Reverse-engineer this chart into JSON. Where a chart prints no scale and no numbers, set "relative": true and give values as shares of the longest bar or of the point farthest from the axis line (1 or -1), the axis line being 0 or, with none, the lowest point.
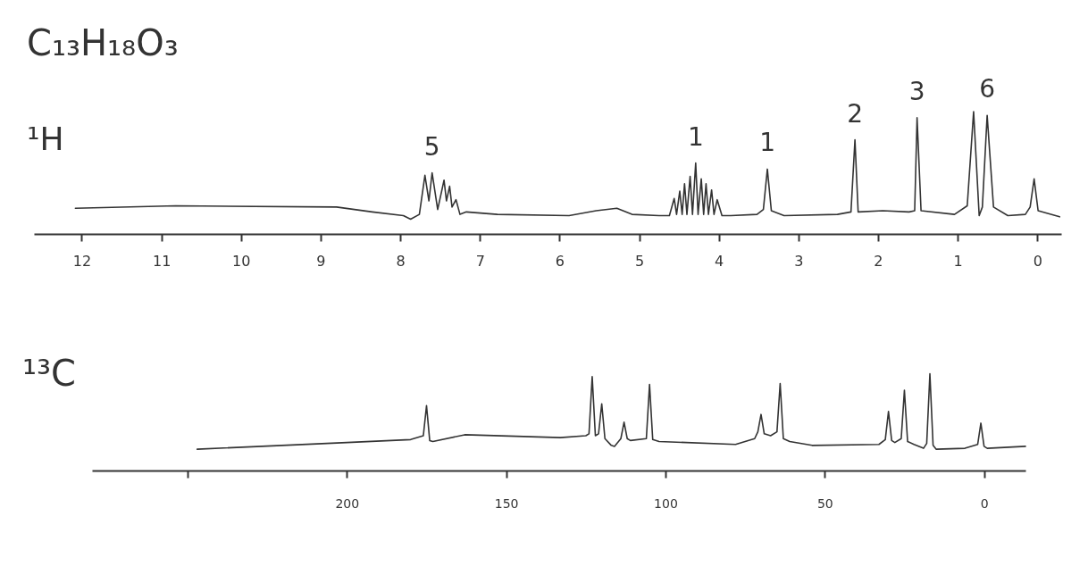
{
  "chart_data": [
    {
      "type": "line",
      "title": "C₁₃H₁₈O₃",
      "subtitle": "¹H",
      "relative": true,
      "color": "#333333",
      "x": [
        12.08,
        10.82,
        8.8,
        8.35,
        7.96,
        7.87,
        7.76,
        7.69,
        7.64,
        7.6,
        7.53,
        7.45,
        7.42,
        7.38,
        7.35,
        7.3,
        7.25,
        7.17,
        6.78,
        5.88,
        5.54,
        5.28,
        5.09,
        4.75,
        4.62,
        4.56,
        4.53,
        4.49,
        4.46,
        4.43,
        4.4,
        4.36,
        4.33,
        4.29,
        4.26,
        4.22,
        4.19,
        4.16,
        4.13,
        4.09,
        4.06,
        4.02,
        3.96,
        3.85,
        3.52,
        3.44,
        3.39,
        3.34,
        3.18,
        2.51,
        2.34,
        2.29,
        2.25,
        1.94,
        1.61,
        1.54,
        1.51,
        1.46,
        1.04,
        0.88,
        0.8,
        0.73,
        0.69,
        0.63,
        0.55,
        0.37,
        0.15,
        0.09,
        0.04,
        -0.01,
        -0.28
      ],
      "values": [
        0.21,
        0.23,
        0.22,
        0.18,
        0.15,
        0.12,
        0.16,
        0.48,
        0.27,
        0.5,
        0.2,
        0.44,
        0.27,
        0.39,
        0.22,
        0.28,
        0.16,
        0.18,
        0.16,
        0.15,
        0.19,
        0.21,
        0.16,
        0.15,
        0.15,
        0.29,
        0.16,
        0.35,
        0.16,
        0.41,
        0.16,
        0.47,
        0.16,
        0.58,
        0.16,
        0.45,
        0.16,
        0.41,
        0.16,
        0.36,
        0.16,
        0.28,
        0.15,
        0.15,
        0.16,
        0.2,
        0.53,
        0.19,
        0.15,
        0.16,
        0.18,
        0.77,
        0.18,
        0.19,
        0.18,
        0.19,
        0.95,
        0.19,
        0.16,
        0.23,
        1.0,
        0.15,
        0.22,
        0.97,
        0.22,
        0.15,
        0.16,
        0.22,
        0.45,
        0.19,
        0.14
      ],
      "xlim": [
        12.6,
        -0.3
      ],
      "xticks": [
        12,
        11,
        10,
        9,
        8,
        7,
        6,
        5,
        4,
        3,
        2,
        1,
        0
      ],
      "annotations": [
        {
          "text": "5",
          "x": 7.6,
          "y": 0.5
        },
        {
          "text": "1",
          "x": 4.29,
          "y": 0.58
        },
        {
          "text": "1",
          "x": 3.39,
          "y": 0.53
        },
        {
          "text": "2",
          "x": 2.29,
          "y": 0.77
        },
        {
          "text": "3",
          "x": 1.51,
          "y": 0.95
        },
        {
          "text": "6",
          "x": 0.63,
          "y": 0.97
        }
      ]
    },
    {
      "type": "line",
      "title": "¹³C",
      "relative": true,
      "color": "#333333",
      "x": [
        247,
        200,
        180,
        176,
        175,
        174,
        173,
        163,
        133,
        125,
        124,
        123,
        122,
        121,
        120,
        119,
        117,
        116,
        114,
        113,
        112,
        111,
        106,
        105,
        104,
        102,
        78,
        72,
        71,
        70,
        69,
        67,
        65,
        64,
        63,
        61,
        54,
        33,
        31,
        30,
        29,
        28,
        26,
        25,
        24,
        22,
        19,
        18,
        17,
        16,
        15,
        6,
        2,
        1,
        0,
        -1,
        -13
      ],
      "values": [
        0.22,
        0.29,
        0.32,
        0.36,
        0.67,
        0.31,
        0.3,
        0.37,
        0.34,
        0.36,
        0.38,
        0.97,
        0.36,
        0.38,
        0.69,
        0.33,
        0.26,
        0.25,
        0.33,
        0.5,
        0.33,
        0.31,
        0.33,
        0.89,
        0.32,
        0.3,
        0.27,
        0.33,
        0.4,
        0.58,
        0.38,
        0.36,
        0.4,
        0.9,
        0.33,
        0.3,
        0.26,
        0.27,
        0.32,
        0.61,
        0.31,
        0.29,
        0.33,
        0.83,
        0.3,
        0.27,
        0.23,
        0.28,
        1.0,
        0.26,
        0.22,
        0.23,
        0.27,
        0.49,
        0.25,
        0.23,
        0.25
      ],
      "xlim": [
        280,
        -13
      ],
      "xticks": [
        {
          "value": 250,
          "label": null
        },
        200,
        150,
        100,
        50,
        0
      ]
    }
  ]
}
